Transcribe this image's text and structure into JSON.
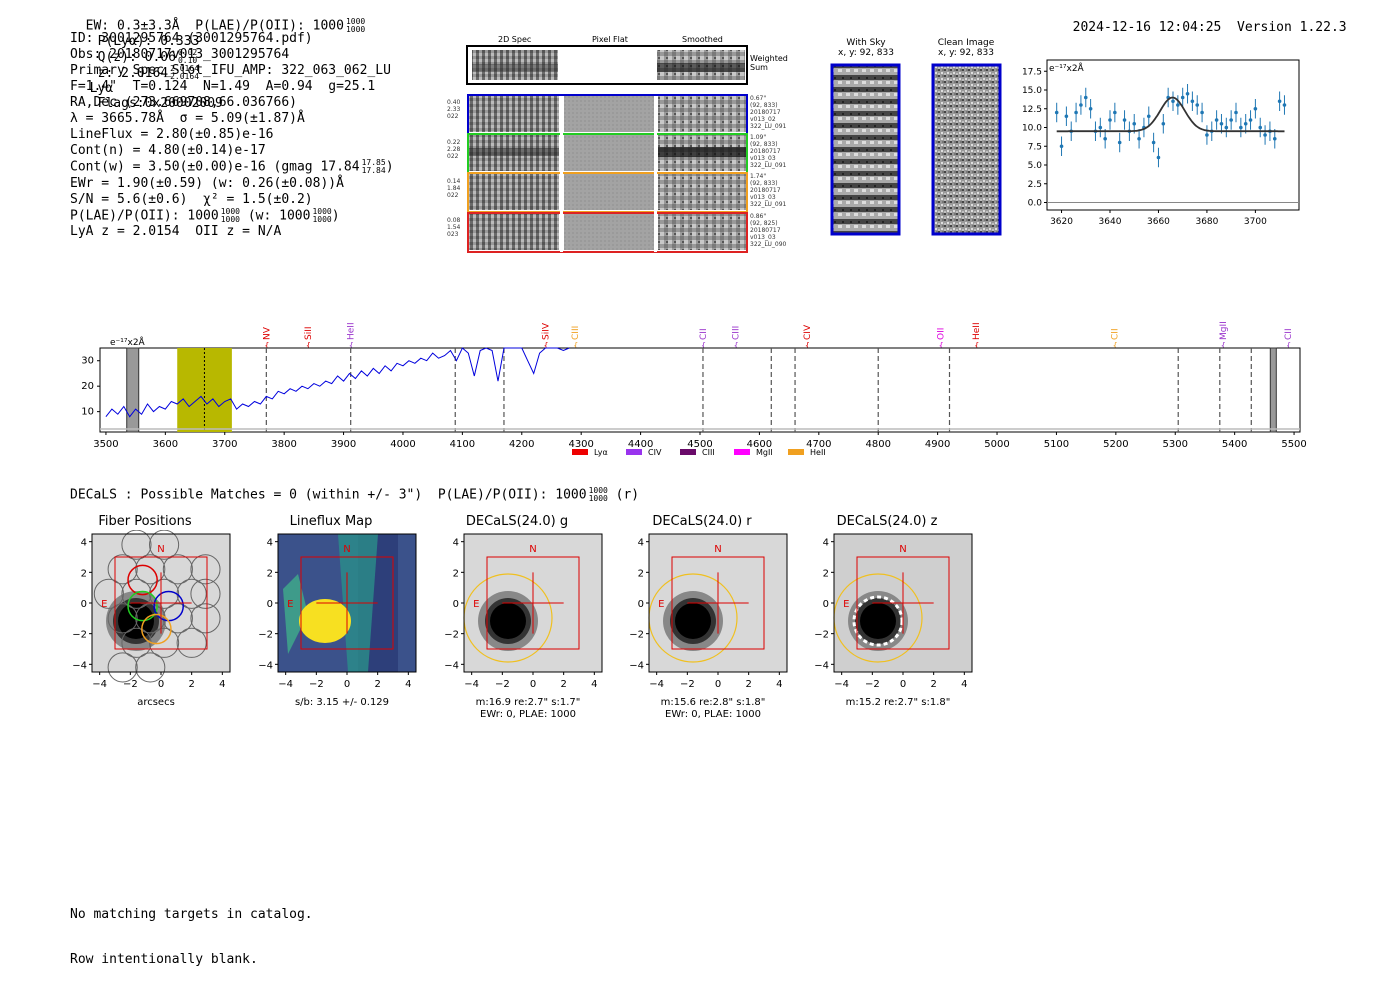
{
  "header": {
    "top_line": "EW: 0.3±3.3Å  P(LAE)/P(OII): 1000",
    "plae_sup": "1000",
    "plae_sub": "1000",
    "lya_label": "P(Lyα): 0.333",
    "qz_label": "Q(z): 0.06",
    "qz_sup": "0.02",
    "qz_sub": "0.10",
    "z_label": "z: 2.0164",
    "z_sup": "2.0164",
    "z_sub": "2.0164",
    "z_line": "Lyα",
    "flags": "Flags:0x20002009",
    "datetime": "2024-12-16 12:04:25",
    "version": "Version 1.22.3"
  },
  "info": {
    "lines": [
      "ID: 3001295764 (3001295764.pdf)",
      "Obs: 20180717v013_3001295764",
      "Primary Spec_Slot_IFU_AMP: 322_063_062_LU",
      "F=1.4\"  T=0.124  N=1.49  A=0.94  g=25.1",
      "RA,Dec (273.669708,66.036766)",
      "λ = 3665.78Å  σ = 5.09(±1.87)Å",
      "LineFlux = 2.80(±0.85)e-16",
      "Cont(n) = 4.80(±0.14)e-17",
      "Cont(w) = 3.50(±0.00)e-16 (gmag 17.84",
      "EWr = 1.90(±0.59) (w: 0.26(±0.08))Å",
      "S/N = 5.6(±0.6)  χ² = 1.5(±0.2)",
      "P(LAE)/P(OII): 1000",
      "LyA z = 2.0154  OII z = N/A"
    ],
    "gmag_sup": "17.85",
    "gmag_sub": "17.84",
    "plae_sup": "1000",
    "plae_sub": "1000",
    "plae_w": "(w: 1000",
    "plae_w_sup": "1000",
    "plae_w_sub": "1000"
  },
  "cutouts": {
    "col_labels": [
      "2D Spec",
      "Pixel Flat",
      "Smoothed"
    ],
    "weighted_label": "Weighted Sum",
    "rows": [
      {
        "left": [
          "0.40",
          "2.33",
          "022"
        ],
        "right": [
          "0.67\"",
          "(92, 833)",
          "20180717",
          "v013_02",
          "322_LU_091"
        ],
        "color": "#0000cc"
      },
      {
        "left": [
          "0.22",
          "2.28",
          "022"
        ],
        "right": [
          "1.09\"",
          "(92, 833)",
          "20180717",
          "v013_03",
          "322_LU_091"
        ],
        "color": "#22cc22"
      },
      {
        "left": [
          "0.14",
          "1.84",
          "022"
        ],
        "right": [
          "1.74\"",
          "(92, 833)",
          "20180717",
          "v013_03",
          "322_LU_091"
        ],
        "color": "#f0a020"
      },
      {
        "left": [
          "0.08",
          "1.54",
          "023"
        ],
        "right": [
          "0.86\"",
          "(92, 825)",
          "20180717",
          "v013_03",
          "322_LU_090"
        ],
        "color": "#dd2222"
      }
    ]
  },
  "sky": {
    "with_sky_title": "With Sky",
    "with_sky_xy": "x, y: 92, 833",
    "clean_title": "Clean Image",
    "clean_xy": "x, y: 92, 833"
  },
  "zoom_plot": {
    "unit_label": "e⁻¹⁷x2Å",
    "yticks": [
      "0.0",
      "2.5",
      "5.0",
      "7.5",
      "10.0",
      "12.5",
      "15.0",
      "17.5"
    ],
    "xticks": [
      "3620",
      "3640",
      "3660",
      "3680",
      "3700"
    ]
  },
  "chart_data": [
    {
      "type": "scatter",
      "title": "",
      "xlabel": "",
      "ylabel": "e-17 x2Å",
      "xlim": [
        3614,
        3718
      ],
      "ylim": [
        -1,
        19
      ],
      "x": [
        3618,
        3620,
        3622,
        3624,
        3626,
        3628,
        3630,
        3632,
        3634,
        3636,
        3638,
        3640,
        3642,
        3644,
        3646,
        3648,
        3650,
        3652,
        3654,
        3656,
        3658,
        3660,
        3662,
        3664,
        3666,
        3668,
        3670,
        3672,
        3674,
        3676,
        3678,
        3680,
        3682,
        3684,
        3686,
        3688,
        3690,
        3692,
        3694,
        3696,
        3698,
        3700,
        3702,
        3704,
        3706,
        3708,
        3710,
        3712
      ],
      "values": [
        12,
        7.5,
        11.5,
        9.5,
        12,
        13,
        14,
        12.5,
        9.5,
        10,
        8.5,
        11,
        12,
        8,
        11,
        9.5,
        10.5,
        8.5,
        10,
        11.5,
        8,
        6,
        10.5,
        14,
        13.5,
        13,
        14,
        14.5,
        13.5,
        13,
        12,
        9,
        9.5,
        11,
        10.5,
        10,
        11,
        12,
        10,
        10.5,
        11,
        12.5,
        10,
        9,
        9.5,
        8.5,
        13.5,
        13
      ],
      "fit": {
        "baseline": 9.5,
        "amplitude": 4.5,
        "center": 3665.8,
        "sigma": 5.09
      }
    },
    {
      "type": "line",
      "title": "",
      "xlabel": "",
      "ylabel": "e-17 x2Å",
      "xlim": [
        3490,
        5510
      ],
      "ylim": [
        2,
        35
      ],
      "x": [
        3500,
        3510,
        3520,
        3530,
        3540,
        3550,
        3560,
        3570,
        3580,
        3590,
        3600,
        3610,
        3620,
        3630,
        3640,
        3650,
        3660,
        3670,
        3680,
        3690,
        3700,
        3710,
        3720,
        3730,
        3740,
        3750,
        3760,
        3770,
        3780,
        3790,
        3800,
        3810,
        3820,
        3830,
        3840,
        3850,
        3860,
        3870,
        3880,
        3890,
        3900,
        3910,
        3920,
        3930,
        3940,
        3950,
        3960,
        3970,
        3980,
        3990,
        4000,
        4010,
        4020,
        4030,
        4040,
        4050,
        4060,
        4070,
        4080,
        4090,
        4100,
        4110,
        4120,
        4130,
        4140,
        4150,
        4160,
        4170,
        4180,
        4190,
        4200,
        4210,
        4220,
        4230,
        4240,
        4250,
        4260,
        4270,
        4280
      ],
      "values": [
        8,
        11,
        9,
        12,
        8,
        11,
        9,
        13,
        10,
        12,
        11,
        14,
        13,
        15,
        12,
        14,
        16,
        13,
        15,
        12,
        14,
        15,
        11,
        13,
        12,
        14,
        13,
        16,
        15,
        18,
        17,
        19,
        18,
        20,
        19,
        21,
        20,
        22,
        21,
        24,
        22,
        25,
        23,
        26,
        24,
        27,
        25,
        28,
        26,
        29,
        28,
        30,
        29,
        31,
        30,
        33,
        31,
        32,
        34,
        30,
        35,
        33,
        24,
        34,
        35,
        34,
        22,
        35,
        35,
        35,
        35,
        30,
        25,
        33,
        35,
        35,
        35,
        34,
        35
      ],
      "lines": [
        {
          "name": "NV",
          "wave": 3770,
          "color": "#dd0000"
        },
        {
          "name": "SiII",
          "wave": 3840,
          "color": "#dd0000"
        },
        {
          "name": "HeII",
          "wave": 3912,
          "color": "#9933cc"
        },
        {
          "name": "SiIV",
          "wave": 4240,
          "color": "#dd0000"
        },
        {
          "name": "CIII",
          "wave": 4290,
          "color": "#f0a020"
        },
        {
          "name": "CII",
          "wave": 4505,
          "color": "#9933cc"
        },
        {
          "name": "CIII",
          "wave": 4560,
          "color": "#9933cc"
        },
        {
          "name": "CIV",
          "wave": 4680,
          "color": "#dd0000"
        },
        {
          "name": "OII",
          "wave": 4905,
          "color": "#dd00dd"
        },
        {
          "name": "HeII",
          "wave": 4965,
          "color": "#dd0000"
        },
        {
          "name": "CII",
          "wave": 5198,
          "color": "#f0a020"
        },
        {
          "name": "MgII",
          "wave": 5380,
          "color": "#9933cc"
        },
        {
          "name": "CII",
          "wave": 5490,
          "color": "#9933cc"
        }
      ],
      "dashed": [
        3770,
        3912,
        4088,
        4170,
        4505,
        4620,
        4660,
        4800,
        4920,
        5305,
        5375,
        5428
      ],
      "highlight": [
        3620,
        3712
      ],
      "xticks": [
        "3500",
        "3600",
        "3700",
        "3800",
        "3900",
        "4000",
        "4100",
        "4200",
        "4300",
        "4400",
        "4500",
        "4600",
        "4700",
        "4800",
        "4900",
        "5000",
        "5100",
        "5200",
        "5300",
        "5400",
        "5500"
      ],
      "yticks": [
        "10",
        "20",
        "30"
      ],
      "legend": [
        {
          "name": "Lyα",
          "color": "#ee0000"
        },
        {
          "name": "CIV",
          "color": "#9933ee"
        },
        {
          "name": "CIII",
          "color": "#6a0a6a"
        },
        {
          "name": "MgII",
          "color": "#ff00ff"
        },
        {
          "name": "HeII",
          "color": "#f0a020"
        }
      ]
    }
  ],
  "full_spec": {
    "unit_label": "e⁻¹⁷x2Å"
  },
  "decals": {
    "header": "DECaLS : Possible Matches = 0 (within +/- 3\")  P(LAE)/P(OII): 1000",
    "header_sup": "1000",
    "header_sub": "1000",
    "header_tail": "(r)",
    "panels": [
      {
        "title": "Fiber Positions",
        "cap1": "arcsecs",
        "cap2": ""
      },
      {
        "title": "Lineflux Map",
        "cap1": "s/b: 3.15 +/- 0.129",
        "cap2": ""
      },
      {
        "title": "DECaLS(24.0) g",
        "cap1": "m:16.9  re:2.7\"  s:1.7\"",
        "cap2": "EWr: 0, PLAE: 1000"
      },
      {
        "title": "DECaLS(24.0) r",
        "cap1": "m:15.6  re:2.8\"  s:1.8\"",
        "cap2": "EWr: 0, PLAE: 1000"
      },
      {
        "title": "DECaLS(24.0) z",
        "cap1": "m:15.2  re:2.7\"  s:1.8\"",
        "cap2": ""
      }
    ],
    "yticks": [
      "4",
      "2",
      "0",
      "−2",
      "−4"
    ],
    "xticks": [
      "−4",
      "−2",
      "0",
      "2",
      "4"
    ],
    "north": "N",
    "east": "E"
  },
  "footer": {
    "line1": "No matching targets in catalog.",
    "line2": "Row intentionally blank."
  }
}
